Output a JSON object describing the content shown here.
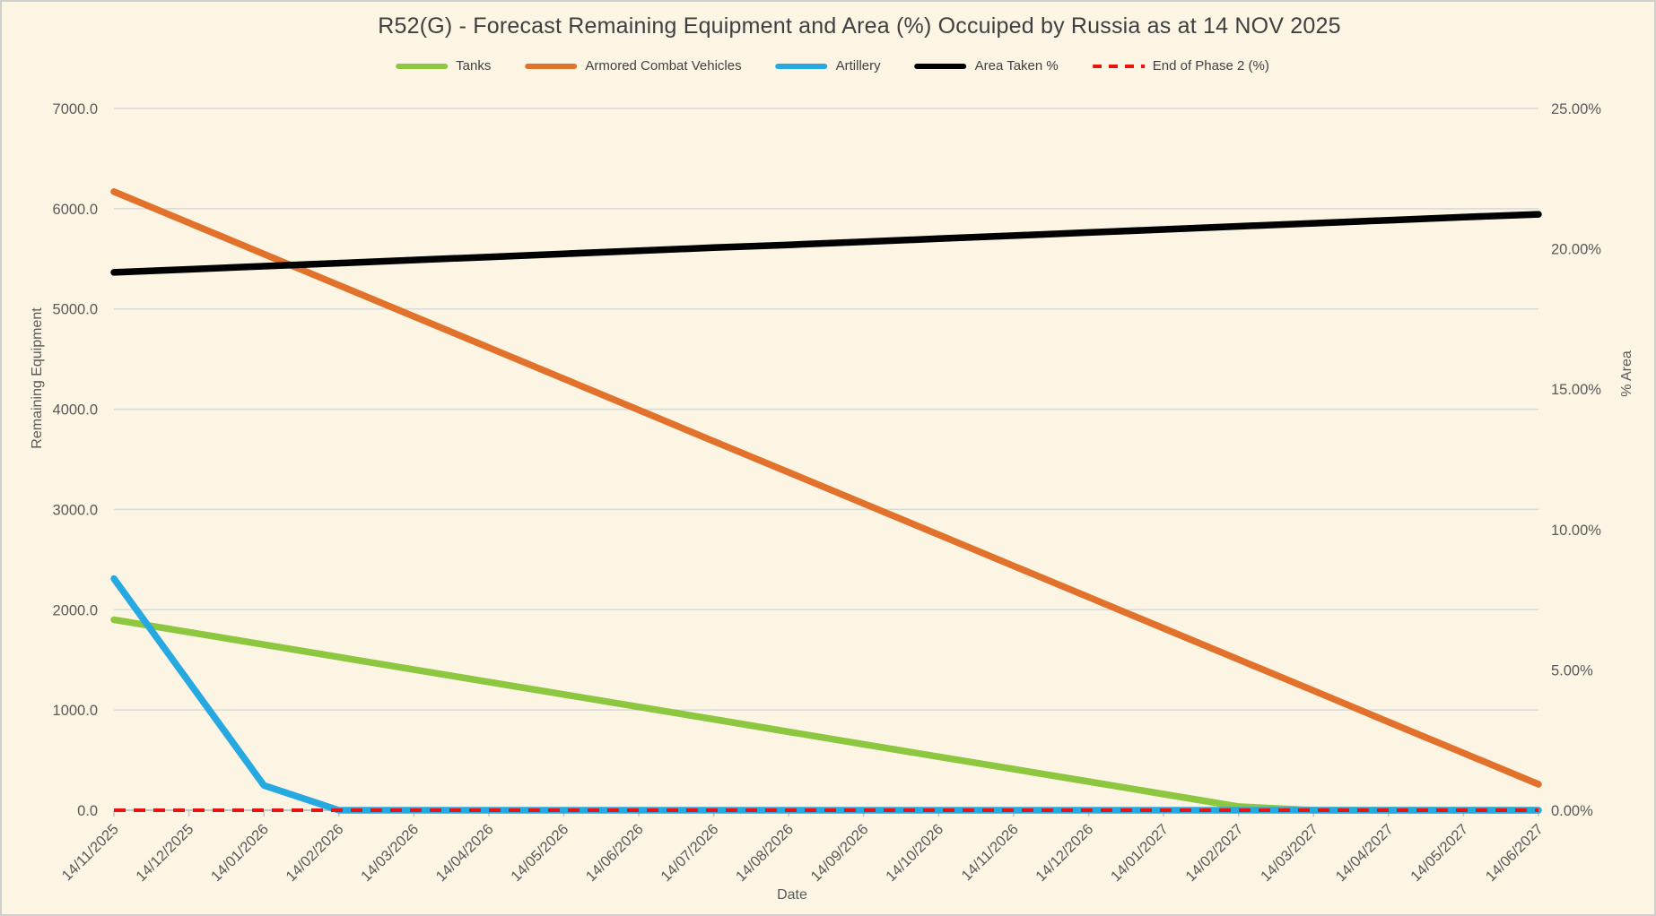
{
  "chart_data": {
    "type": "line",
    "title": "R52(G) - Forecast Remaining Equipment and Area (%) Occuiped by Russia as at 14 NOV 2025",
    "xlabel": "Date",
    "ylabel_left": "Remaining Equipment",
    "ylabel_right": "% Area",
    "grid": true,
    "legend_position": "top",
    "categories": [
      "14/11/2025",
      "14/12/2025",
      "14/01/2026",
      "14/02/2026",
      "14/03/2026",
      "14/04/2026",
      "14/05/2026",
      "14/06/2026",
      "14/07/2026",
      "14/08/2026",
      "14/09/2026",
      "14/10/2026",
      "14/11/2026",
      "14/12/2026",
      "14/01/2027",
      "14/02/2027",
      "14/03/2027",
      "14/04/2027",
      "14/05/2027",
      "14/06/2027"
    ],
    "left_axis": {
      "min": 0,
      "max": 7000,
      "tick_step": 1000,
      "tick_labels": [
        "0.0",
        "1000.0",
        "2000.0",
        "3000.0",
        "4000.0",
        "5000.0",
        "6000.0",
        "7000.0"
      ]
    },
    "right_axis": {
      "min": 0,
      "max": 25,
      "tick_step": 5,
      "tick_labels": [
        "0.00%",
        "5.00%",
        "10.00%",
        "15.00%",
        "20.00%",
        "25.00%"
      ]
    },
    "series": [
      {
        "name": "Tanks",
        "axis": "left",
        "color": "#8DC63F",
        "style": "solid",
        "values": [
          1900,
          1776,
          1652,
          1528,
          1403,
          1279,
          1155,
          1031,
          907,
          782,
          658,
          534,
          410,
          286,
          161,
          37,
          0,
          0,
          0,
          0
        ]
      },
      {
        "name": "Armored Combat Vehicles",
        "axis": "left",
        "color": "#E2712B",
        "style": "solid",
        "values": [
          6170,
          5859,
          5548,
          5237,
          4926,
          4615,
          4304,
          3993,
          3681,
          3370,
          3059,
          2748,
          2437,
          2126,
          1815,
          1504,
          1193,
          881,
          570,
          259
        ]
      },
      {
        "name": "Artillery",
        "axis": "left",
        "color": "#26A9E0",
        "style": "solid",
        "values": [
          2310,
          1279,
          248,
          0,
          0,
          0,
          0,
          0,
          0,
          0,
          0,
          0,
          0,
          0,
          0,
          0,
          0,
          0,
          0,
          0
        ]
      },
      {
        "name": "Area Taken %",
        "axis": "right",
        "color": "#000000",
        "style": "solid",
        "values": [
          19.16,
          19.27,
          19.38,
          19.49,
          19.6,
          19.71,
          19.82,
          19.93,
          20.04,
          20.14,
          20.25,
          20.36,
          20.47,
          20.58,
          20.69,
          20.8,
          20.91,
          21.02,
          21.13,
          21.23
        ]
      },
      {
        "name": "End of Phase 2 (%)",
        "axis": "right",
        "color": "#EE1111",
        "style": "dashed",
        "values": [
          0,
          0,
          0,
          0,
          0,
          0,
          0,
          0,
          0,
          0,
          0,
          0,
          0,
          0,
          0,
          0,
          0,
          0,
          0,
          0
        ]
      }
    ]
  },
  "colors": {
    "background": "#FCF5E4",
    "gridline": "#D9D9D9",
    "axis_line": "#C3C3C3",
    "axis_text": "#595959",
    "title_text": "#3F3F3F",
    "border": "#CFCFCF"
  }
}
